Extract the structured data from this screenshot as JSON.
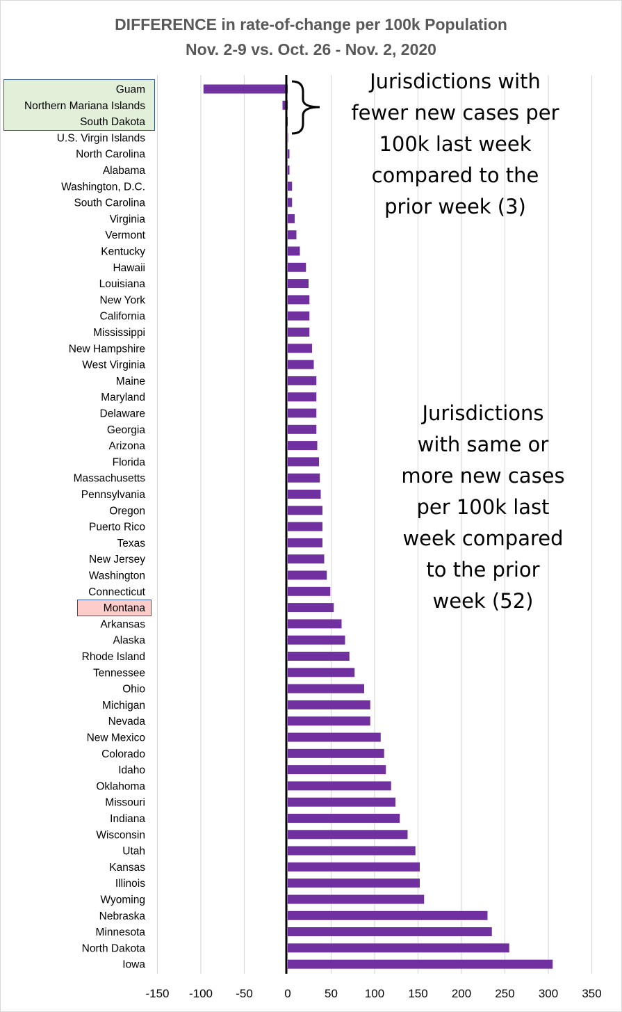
{
  "title": "DIFFERENCE in rate-of-change per 100k Population",
  "subtitle": "Nov. 2-9 vs. Oct. 26 - Nov. 2, 2020",
  "annotations": {
    "fewer": "Jurisdictions with fewer new cases per 100k last week compared to the prior week (3)",
    "fewer_lines": [
      "Jurisdictions with",
      "fewer new cases per",
      "100k last week",
      "compared to the",
      "prior week (3)"
    ],
    "more": "Jurisdictions with same or more new cases per 100k last week compared to the prior week (52)",
    "more_lines": [
      "Jurisdictions",
      "with same or",
      "more new cases",
      "per 100k last",
      "week compared",
      "to the prior",
      "week (52)"
    ]
  },
  "highlights": {
    "green_categories": [
      "Guam",
      "Northern Mariana Islands",
      "South Dakota"
    ],
    "green_color": "#e2efd9",
    "red_category": "Montana",
    "red_color": "#ffcccc",
    "border_color": "#2f5496"
  },
  "colors": {
    "bar": "#7030a0",
    "grid": "#d9d9d9",
    "zero_line": "#000000",
    "title": "#595959"
  },
  "chart_data": {
    "type": "bar",
    "orientation": "horizontal",
    "title": "DIFFERENCE in rate-of-change per 100k Population",
    "subtitle": "Nov. 2-9 vs. Oct. 26 - Nov. 2, 2020",
    "xlim": [
      -150,
      350
    ],
    "xticks": [
      -150,
      -100,
      -50,
      0,
      50,
      100,
      150,
      200,
      250,
      300,
      350
    ],
    "grid": "vertical",
    "categories": [
      "Guam",
      "Northern Mariana Islands",
      "South Dakota",
      "U.S. Virgin Islands",
      "North Carolina",
      "Alabama",
      "Washington, D.C.",
      "South Carolina",
      "Virginia",
      "Vermont",
      "Kentucky",
      "Hawaii",
      "Louisiana",
      "New York",
      "California",
      "Mississippi",
      "New Hampshire",
      "West Virginia",
      "Maine",
      "Maryland",
      "Delaware",
      "Georgia",
      "Arizona",
      "Florida",
      "Massachusetts",
      "Pennsylvania",
      "Oregon",
      "Puerto Rico",
      "Texas",
      "New Jersey",
      "Washington",
      "Connecticut",
      "Montana",
      "Arkansas",
      "Alaska",
      "Rhode Island",
      "Tennessee",
      "Ohio",
      "Michigan",
      "Nevada",
      "New Mexico",
      "Colorado",
      "Idaho",
      "Oklahoma",
      "Missouri",
      "Indiana",
      "Wisconsin",
      "Utah",
      "Kansas",
      "Illinois",
      "Wyoming",
      "Nebraska",
      "Minnesota",
      "North Dakota",
      "Iowa"
    ],
    "values": [
      -97,
      -6,
      -2,
      0,
      2,
      2,
      5,
      5,
      8,
      10,
      14,
      21,
      24,
      25,
      25,
      25,
      28,
      30,
      33,
      33,
      33,
      33,
      34,
      36,
      37,
      38,
      40,
      40,
      40,
      42,
      45,
      49,
      53,
      62,
      66,
      71,
      77,
      88,
      95,
      95,
      107,
      111,
      113,
      119,
      124,
      129,
      138,
      147,
      152,
      152,
      157,
      230,
      235,
      255,
      305
    ]
  }
}
